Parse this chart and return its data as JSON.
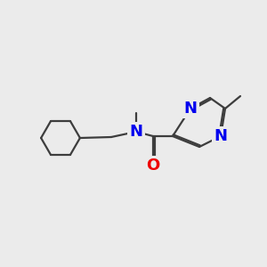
{
  "bg_color": "#ebebeb",
  "bond_color": "#3d3d3d",
  "N_color": "#0000ee",
  "O_color": "#ee0000",
  "line_width": 1.6,
  "font_size": 13,
  "fig_size": [
    3.0,
    3.0
  ],
  "dpi": 100,
  "xlim": [
    0,
    10
  ],
  "ylim": [
    0,
    10
  ]
}
